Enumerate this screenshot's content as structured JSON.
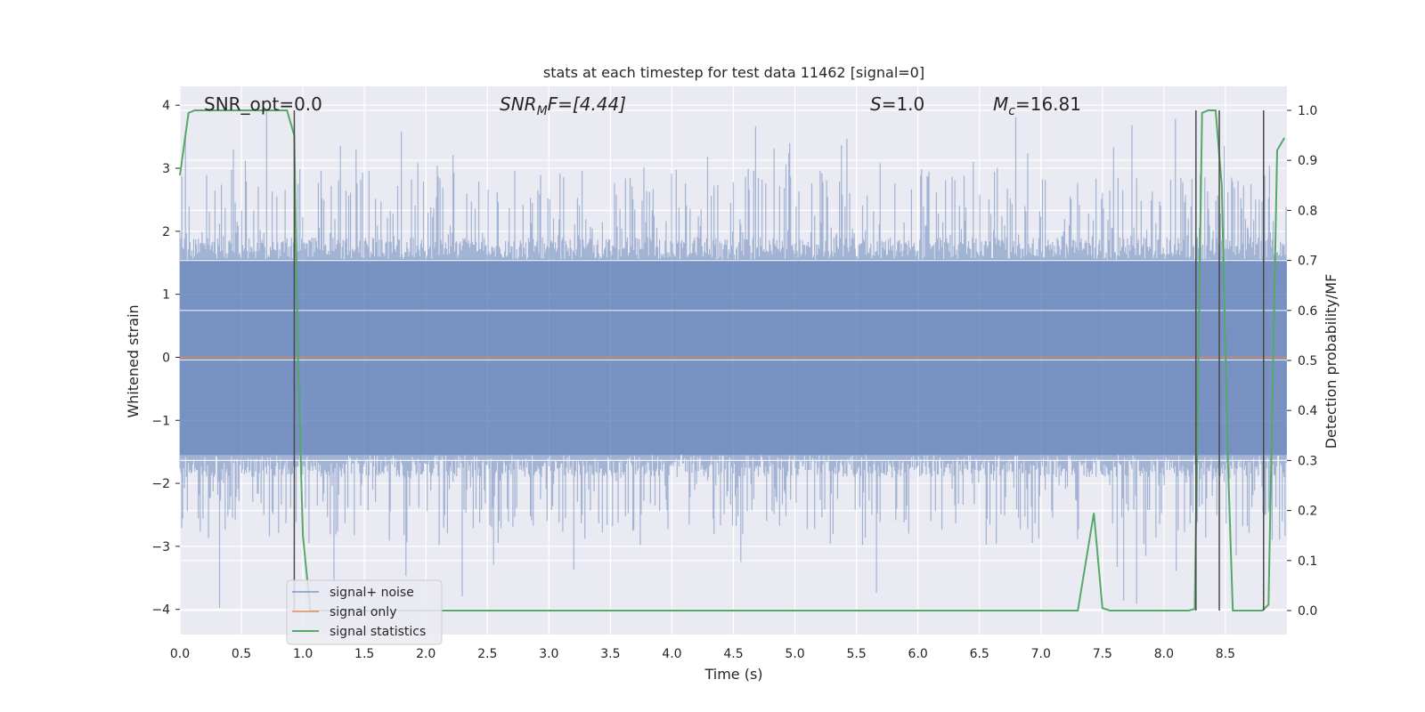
{
  "chart_data": {
    "type": "line",
    "title": "stats at each timestep for test data 11462 [signal=0]",
    "xlabel": "Time (s)",
    "ylabel": "Whitened strain",
    "y2label": "Detection probability/MF",
    "xlim": [
      0.0,
      9.0
    ],
    "ylim": [
      -4.4,
      4.3
    ],
    "y2lim": [
      -0.048,
      1.048
    ],
    "x_ticks": [
      0.0,
      0.5,
      1.0,
      1.5,
      2.0,
      2.5,
      3.0,
      3.5,
      4.0,
      4.5,
      5.0,
      5.5,
      6.0,
      6.5,
      7.0,
      7.5,
      8.0,
      8.5
    ],
    "x_tick_labels": [
      "0.0",
      "0.5",
      "1.0",
      "1.5",
      "2.0",
      "2.5",
      "3.0",
      "3.5",
      "4.0",
      "4.5",
      "5.0",
      "5.5",
      "6.0",
      "6.5",
      "7.0",
      "7.5",
      "8.0",
      "8.5"
    ],
    "y_ticks": [
      -4,
      -3,
      -2,
      -1,
      0,
      1,
      2,
      3,
      4
    ],
    "y_tick_labels": [
      "−4",
      "−3",
      "−2",
      "−1",
      "0",
      "1",
      "2",
      "3",
      "4"
    ],
    "y2_ticks": [
      0.0,
      0.1,
      0.2,
      0.3,
      0.4,
      0.5,
      0.6,
      0.7,
      0.8,
      0.9,
      1.0
    ],
    "y2_tick_labels": [
      "0.0",
      "0.1",
      "0.2",
      "0.3",
      "0.4",
      "0.5",
      "0.6",
      "0.7",
      "0.8",
      "0.9",
      "1.0"
    ],
    "grid": true,
    "legend_position": "lower-left",
    "annotations": {
      "snr_opt": "SNR_opt=0.0",
      "snr_mf_main": "SNR",
      "snr_mf_sub": "M",
      "snr_mf_rest": "F=[4.44]",
      "s_main": "S",
      "s_rest": "=1.0",
      "mc_main": "M",
      "mc_sub": "c",
      "mc_rest": "=16.81"
    },
    "series": [
      {
        "name": "signal+ noise",
        "color": "#4c72b0",
        "description_values": "whitened strain noise, roughly within ±2 with spikes to about ±4",
        "envelope": {
          "typical": 1.55,
          "max": 3.9,
          "min": -4.0
        }
      },
      {
        "name": "signal only",
        "color": "#dd8452",
        "values_constant": 0.0
      },
      {
        "name": "signal statistics",
        "color": "#55a868",
        "x": [
          0.0,
          0.07,
          0.12,
          0.2,
          0.5,
          0.8,
          0.87,
          0.93,
          0.96,
          1.0,
          1.06,
          1.2,
          2.0,
          4.0,
          6.0,
          7.0,
          7.3,
          7.43,
          7.5,
          7.56,
          8.0,
          8.2,
          8.25,
          8.31,
          8.36,
          8.42,
          8.47,
          8.52,
          8.56,
          8.6,
          8.8,
          8.85,
          8.92,
          8.98
        ],
        "values": [
          0.87,
          0.995,
          1.0,
          1.0,
          1.0,
          1.0,
          1.0,
          0.95,
          0.5,
          0.15,
          0.0,
          0.0,
          0.0,
          0.0,
          0.0,
          0.0,
          0.0,
          0.195,
          0.005,
          0.0,
          0.0,
          0.0,
          0.003,
          0.995,
          1.0,
          1.0,
          0.85,
          0.3,
          0.0,
          0.0,
          0.0,
          0.012,
          0.92,
          0.945
        ]
      }
    ],
    "vertical_markers_x": [
      0.93,
      8.26,
      8.45,
      8.81
    ]
  }
}
